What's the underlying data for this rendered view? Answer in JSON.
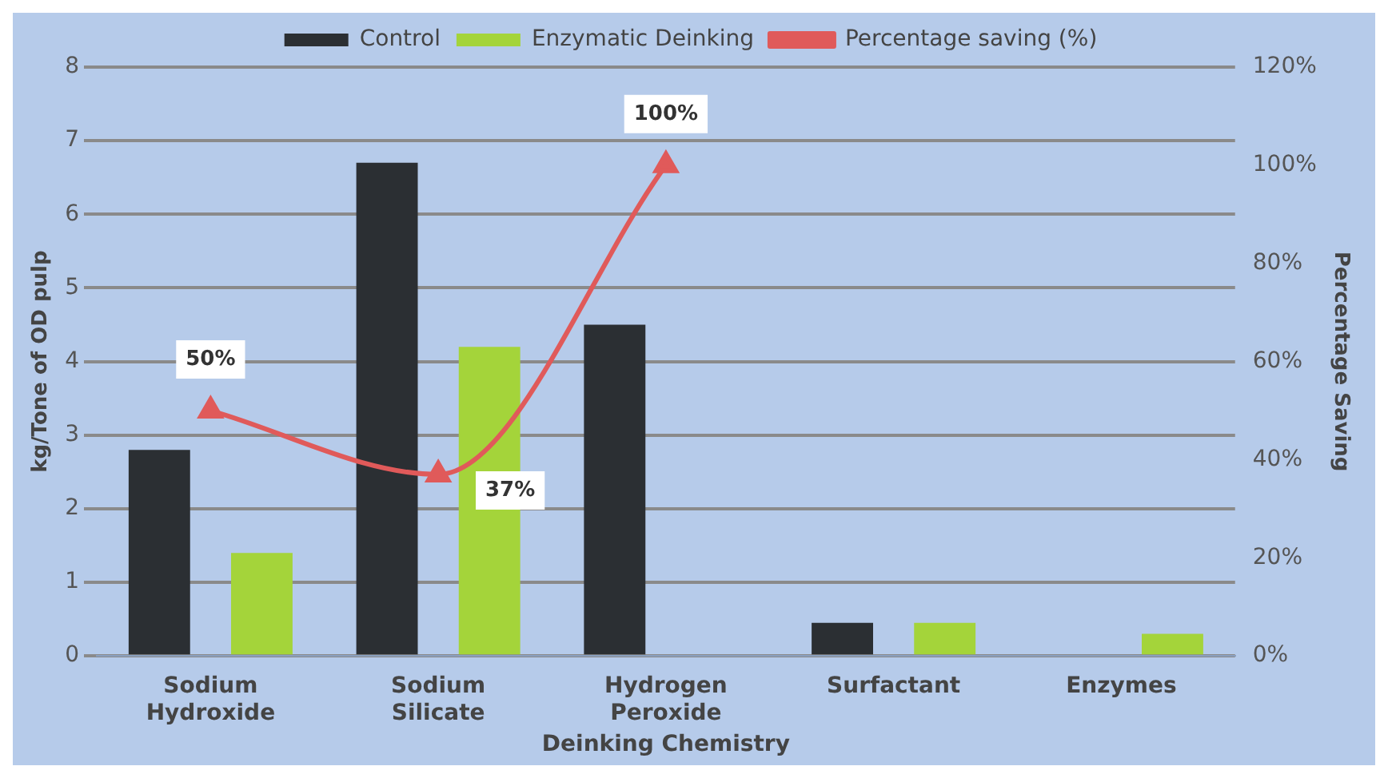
{
  "chart_data": {
    "type": "bar",
    "xlabel": "Deinking Chemistry",
    "ylabel": "kg/Tone of OD pulp",
    "y2label": "Percentage Saving",
    "categories": [
      "Sodium Hydroxide",
      "Sodium Silicate",
      "Hydrogen Peroxide",
      "Surfactant",
      "Enzymes"
    ],
    "series": [
      {
        "name": "Control",
        "color": "#2b2f33",
        "values": [
          2.8,
          6.7,
          4.5,
          0.45,
          null
        ]
      },
      {
        "name": "Enzymatic Deinking",
        "color": "#a4d43a",
        "values": [
          1.4,
          4.2,
          null,
          0.45,
          0.3
        ]
      },
      {
        "name": "Percentage saving (%)",
        "type": "line",
        "axis": "y2",
        "color": "#e05a5a",
        "marker": "triangle",
        "values": [
          50,
          37,
          100,
          null,
          null
        ],
        "value_labels": [
          "50%",
          "37%",
          "100%",
          null,
          null
        ]
      }
    ],
    "ylim": [
      0,
      8
    ],
    "yticks": [
      0,
      1,
      2,
      3,
      4,
      5,
      6,
      7,
      8
    ],
    "y2lim": [
      0,
      120
    ],
    "y2ticks": [
      {
        "value": 0,
        "label": "0%"
      },
      {
        "value": 20,
        "label": "20%"
      },
      {
        "value": 40,
        "label": "40%"
      },
      {
        "value": 60,
        "label": "60%"
      },
      {
        "value": 80,
        "label": "80%"
      },
      {
        "value": 100,
        "label": "100%"
      },
      {
        "value": 120,
        "label": "120%"
      }
    ],
    "grid": "y",
    "legend": "top"
  }
}
